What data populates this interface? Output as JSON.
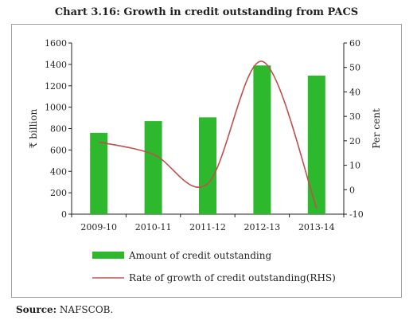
{
  "title": "Chart 3.16: Growth in credit outstanding from PACS",
  "source": {
    "label": "Source:",
    "text": "NAFSCOB."
  },
  "colors": {
    "bar": "#2eb82e",
    "line": "#c0504d",
    "axis": "#231f20",
    "frame": "#9d9fa2"
  },
  "chart_data": {
    "type": "bar",
    "categories": [
      "2009-10",
      "2010-11",
      "2011-12",
      "2012-13",
      "2013-14"
    ],
    "series": [
      {
        "name": "Amount of credit outstanding",
        "type": "bar",
        "axis": "left",
        "values": [
          760,
          870,
          905,
          1390,
          1295
        ]
      },
      {
        "name": "Rate of growth of credit outstanding(RHS)",
        "type": "line",
        "axis": "right",
        "values": [
          19.5,
          14.5,
          2.5,
          52.5,
          -7.5
        ]
      }
    ],
    "ylabel": "₹ billion",
    "y2label": "Per cent",
    "ylim": [
      0,
      1600
    ],
    "yticks": [
      "0",
      "200",
      "400",
      "600",
      "800",
      "1000",
      "1200",
      "1400",
      "1600"
    ],
    "y2lim": [
      -10,
      60
    ],
    "y2ticks": [
      "-10",
      "0",
      "10",
      "20",
      "30",
      "40",
      "50",
      "60"
    ],
    "grid": false,
    "legend": "bottom"
  }
}
